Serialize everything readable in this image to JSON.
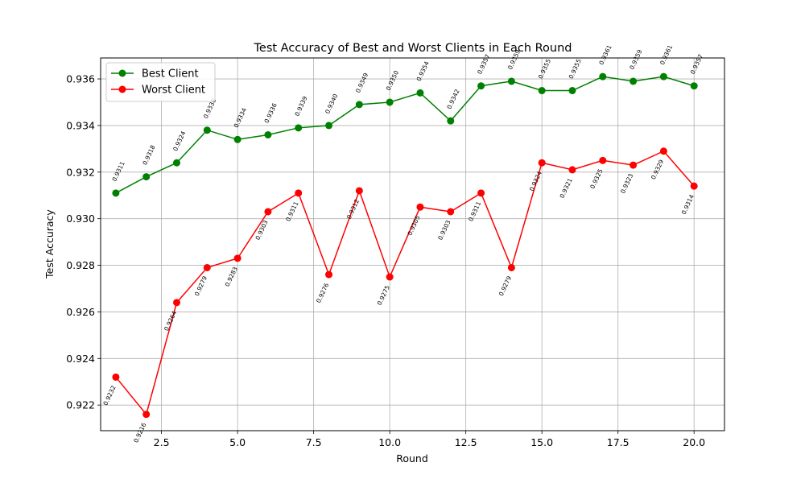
{
  "chart_data": {
    "type": "line",
    "title": "Test Accuracy of Best and Worst Clients in Each Round",
    "xlabel": "Round",
    "ylabel": "Test Accuracy",
    "xlim": [
      0.5,
      21.0
    ],
    "ylim": [
      0.9209,
      0.9369
    ],
    "x_ticks": [
      "2.5",
      "5.0",
      "7.5",
      "10.0",
      "12.5",
      "15.0",
      "17.5",
      "20.0"
    ],
    "y_ticks": [
      "0.922",
      "0.924",
      "0.926",
      "0.928",
      "0.930",
      "0.932",
      "0.934",
      "0.936"
    ],
    "grid": true,
    "legend_position": "upper-left",
    "x": [
      1,
      2,
      3,
      4,
      5,
      6,
      7,
      8,
      9,
      10,
      11,
      12,
      13,
      14,
      15,
      16,
      17,
      18,
      19,
      20
    ],
    "series": [
      {
        "name": "Best Client",
        "color": "#008000",
        "values": [
          0.9311,
          0.9318,
          0.9324,
          0.9338,
          0.9334,
          0.9336,
          0.9339,
          0.934,
          0.9349,
          0.935,
          0.9354,
          0.9342,
          0.9357,
          0.9359,
          0.9355,
          0.9355,
          0.9361,
          0.9359,
          0.9361,
          0.9357
        ],
        "labels": [
          "0.9311",
          "0.9318",
          "0.9324",
          "0.9338",
          "0.9334",
          "0.9336",
          "0.9339",
          "0.9340",
          "0.9349",
          "0.9350",
          "0.9354",
          "0.9342",
          "0.9357",
          "0.9359",
          "0.9355",
          "0.9355",
          "0.9361",
          "0.9359",
          "0.9361",
          "0.9357"
        ]
      },
      {
        "name": "Worst Client",
        "color": "#ff0000",
        "values": [
          0.9232,
          0.9216,
          0.9264,
          0.9279,
          0.9283,
          0.9303,
          0.9311,
          0.9276,
          0.9312,
          0.9275,
          0.9305,
          0.9303,
          0.9311,
          0.9279,
          0.9324,
          0.9321,
          0.9325,
          0.9323,
          0.9329,
          0.9314
        ],
        "labels": [
          "0.9232",
          "0.9216",
          "0.9264",
          "0.9279",
          "0.9283",
          "0.9303",
          "0.9311",
          "0.9276",
          "0.9312",
          "0.9275",
          "0.9305",
          "0.9303",
          "0.9311",
          "0.9279",
          "0.9324",
          "0.9321",
          "0.9325",
          "0.9323",
          "0.9329",
          "0.9314"
        ]
      }
    ]
  }
}
